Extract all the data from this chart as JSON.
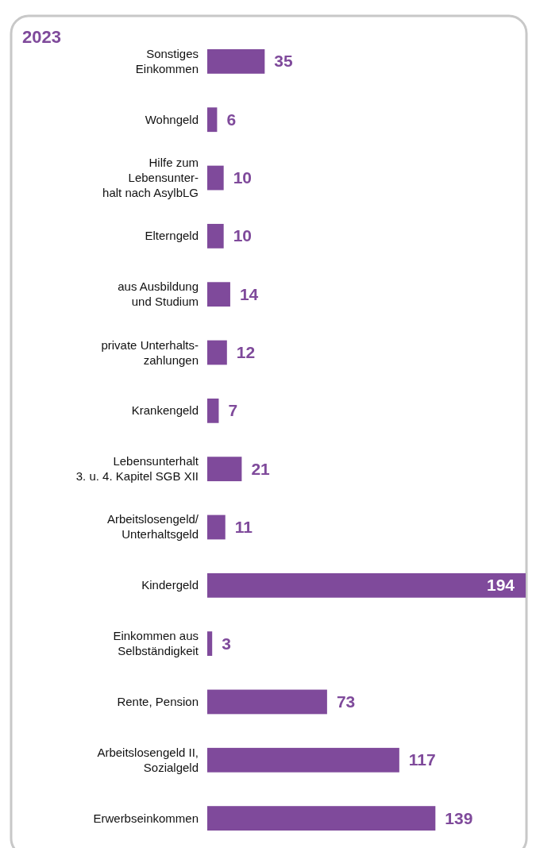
{
  "chart_data": {
    "type": "bar",
    "orientation": "horizontal",
    "title": "2023",
    "categories": [
      "Sonstiges\nEinkommen",
      "Wohngeld",
      "Hilfe zum\nLebensunter-\nhalt nach AsylbLG",
      "Elterngeld",
      "aus Ausbildung\nund Studium",
      "private Unterhalts-\nzahlungen",
      "Krankengeld",
      "Lebensunterhalt\n3. u. 4. Kapitel SGB XII",
      "Arbeitslosengeld/\nUnterhaltsgeld",
      "Kindergeld",
      "Einkommen aus\nSelbständigkeit",
      "Rente, Pension",
      "Arbeitslosengeld II,\nSozialgeld",
      "Erwerbseinkommen"
    ],
    "values": [
      35,
      6,
      10,
      10,
      14,
      12,
      7,
      21,
      11,
      194,
      3,
      73,
      117,
      139
    ],
    "color": "#7f4a9b",
    "data_labels": true
  }
}
